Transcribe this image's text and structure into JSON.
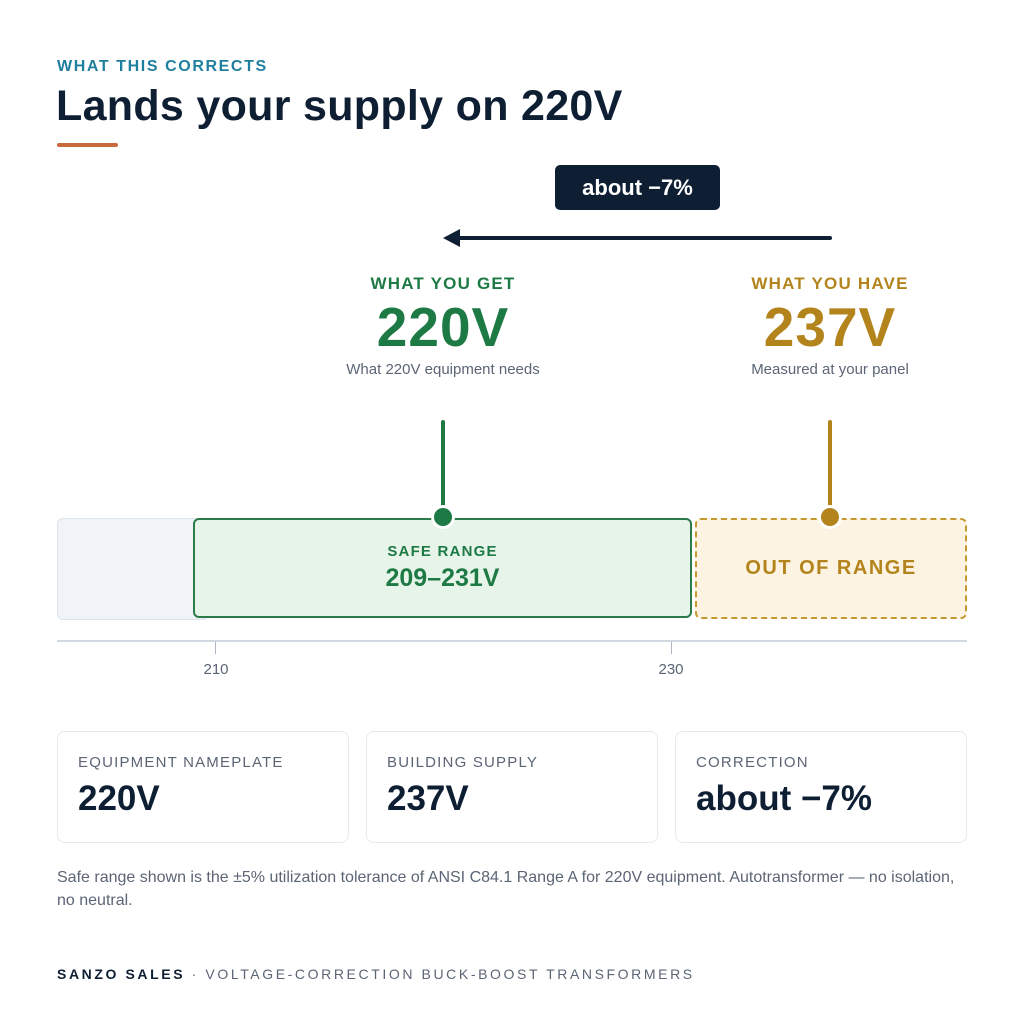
{
  "header": {
    "eyebrow": "WHAT THIS CORRECTS",
    "title": "Lands your supply on 220V"
  },
  "delta_badge": "about −7%",
  "callouts": {
    "get": {
      "label": "WHAT YOU GET",
      "value": "220V",
      "sub": "What 220V equipment needs"
    },
    "have": {
      "label": "WHAT YOU HAVE",
      "value": "237V",
      "sub": "Measured at your panel"
    }
  },
  "scale": {
    "safe_label": "SAFE RANGE",
    "safe_range": "209–231V",
    "out_label": "OUT OF RANGE",
    "ticks": [
      "210",
      "230"
    ]
  },
  "cards": [
    {
      "label": "EQUIPMENT NAMEPLATE",
      "value": "220V"
    },
    {
      "label": "BUILDING SUPPLY",
      "value": "237V"
    },
    {
      "label": "CORRECTION",
      "value": "about −7%"
    }
  ],
  "footnote": "Safe range shown is the ±5% utilization tolerance of ANSI C84.1 Range A for 220V equipment. Autotransformer — no isolation, no neutral.",
  "footer": {
    "brand": "SANZO SALES",
    "separator": " · ",
    "tagline": "VOLTAGE-CORRECTION BUCK-BOOST TRANSFORMERS"
  },
  "colors": {
    "accent_green": "#1e7a45",
    "accent_gold": "#b3841c",
    "navy": "#0f1f33",
    "rule": "#c86a3c"
  }
}
